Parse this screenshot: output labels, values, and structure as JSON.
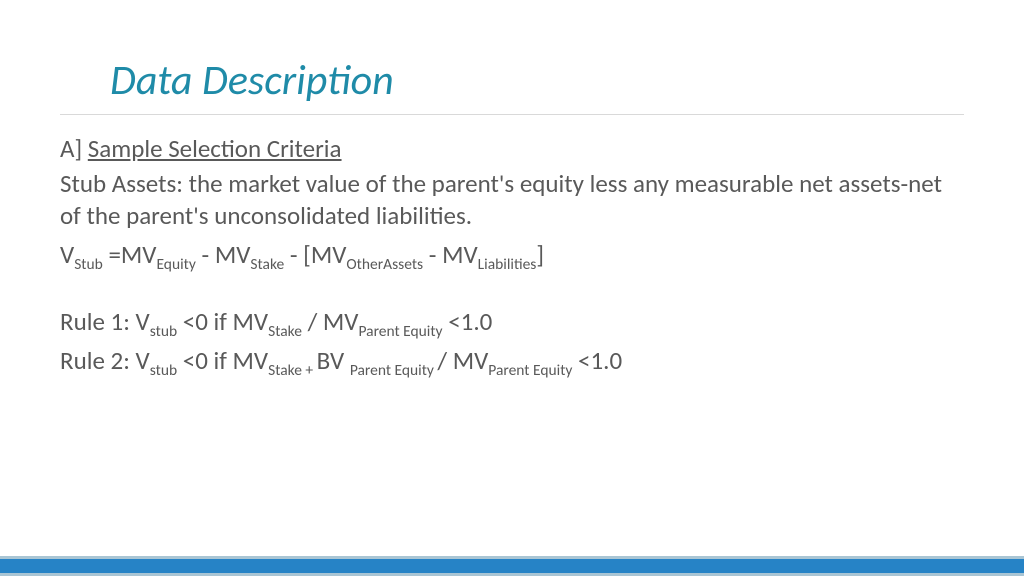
{
  "title": {
    "text": "Data Description",
    "color": "#1f8ba8",
    "fontsize": 42
  },
  "body": {
    "color": "#595959",
    "fontsize": 25,
    "section_prefix": "A] ",
    "section_heading": "Sample Selection Criteria",
    "paragraph": "Stub Assets: the market value of the parent's equity less any measurable net assets-net of the parent's unconsolidated liabilities.",
    "formula": {
      "t0": "V",
      "s0": "Stub",
      "t1": " =MV",
      "s1": "Equity",
      "t2": " - MV",
      "s2": "Stake",
      "t3": " - [MV",
      "s3": "OtherAssets",
      "t4": " - MV",
      "s4": "Liabilities",
      "t5": "]"
    },
    "rule1": {
      "t0": "Rule 1: V",
      "s0": "stub",
      "t1": " <0 if MV",
      "s1": "Stake",
      "t2": " / MV",
      "s2": "Parent Equity",
      "t3": " <1.0"
    },
    "rule2": {
      "t0": "Rule 2: V",
      "s0": "stub",
      "t1": " <0 if MV",
      "s1": "Stake + ",
      "t2": "BV ",
      "s2": "Parent Equity ",
      "t3": "/ MV",
      "s3": "Parent Equity",
      "t4": " <1.0"
    }
  },
  "footer": {
    "outer_color": "#a9c5d4",
    "inner_color": "#2683c6"
  }
}
